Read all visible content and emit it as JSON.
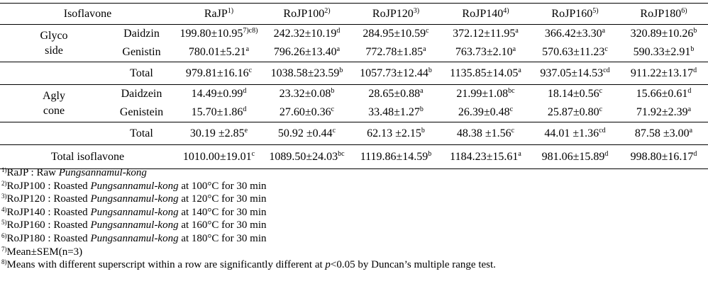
{
  "table": {
    "header": {
      "first": "Isoflavone",
      "columns": [
        {
          "label": "RaJP",
          "sup": "1)"
        },
        {
          "label": "RoJP100",
          "sup": "2)"
        },
        {
          "label": "RoJP120",
          "sup": "3)"
        },
        {
          "label": "RoJP140",
          "sup": "4)"
        },
        {
          "label": "RoJP160",
          "sup": "5)"
        },
        {
          "label": "RoJP180",
          "sup": "6)"
        }
      ]
    },
    "glycoside": {
      "group_line1": "Glyco",
      "group_line2": "side",
      "rows": [
        {
          "name": "Daidzin",
          "cells": [
            {
              "v": "199.80±10.95",
              "s": "7)c8)"
            },
            {
              "v": "242.32±10.19",
              "s": "d"
            },
            {
              "v": "284.95±10.59",
              "s": "c"
            },
            {
              "v": "372.12±11.95",
              "s": "a"
            },
            {
              "v": "366.42±3.30",
              "s": "a"
            },
            {
              "v": "320.89±10.26",
              "s": "b"
            }
          ]
        },
        {
          "name": "Genistin",
          "cells": [
            {
              "v": "780.01±5.21",
              "s": "a"
            },
            {
              "v": "796.26±13.40",
              "s": "a"
            },
            {
              "v": "772.78±1.85",
              "s": "a"
            },
            {
              "v": "763.73±2.10",
              "s": "a"
            },
            {
              "v": "570.63±11.23",
              "s": "c"
            },
            {
              "v": "590.33±2.91",
              "s": "b"
            }
          ]
        }
      ],
      "total": {
        "name": "Total",
        "cells": [
          {
            "v": "979.81±16.16",
            "s": "c"
          },
          {
            "v": "1038.58±23.59",
            "s": "b"
          },
          {
            "v": "1057.73±12.44",
            "s": "b"
          },
          {
            "v": "1135.85±14.05",
            "s": "a"
          },
          {
            "v": "937.05±14.53",
            "s": "cd"
          },
          {
            "v": "911.22±13.17",
            "s": "d"
          }
        ]
      }
    },
    "aglycone": {
      "group_line1": "Agly",
      "group_line2": "cone",
      "rows": [
        {
          "name": "Daidzein",
          "cells": [
            {
              "v": "14.49±0.99",
              "s": "d"
            },
            {
              "v": "23.32±0.08",
              "s": "b"
            },
            {
              "v": "28.65±0.88",
              "s": "a"
            },
            {
              "v": "21.99±1.08",
              "s": "bc"
            },
            {
              "v": "18.14±0.56",
              "s": "c"
            },
            {
              "v": "15.66±0.61",
              "s": "d"
            }
          ]
        },
        {
          "name": "Genistein",
          "cells": [
            {
              "v": "15.70±1.86",
              "s": "d"
            },
            {
              "v": "27.60±0.36",
              "s": "c"
            },
            {
              "v": "33.48±1.27",
              "s": "b"
            },
            {
              "v": "26.39±0.48",
              "s": "c"
            },
            {
              "v": "25.87±0.80",
              "s": "c"
            },
            {
              "v": "71.92±2.39",
              "s": "a"
            }
          ]
        }
      ],
      "total": {
        "name": "Total",
        "cells": [
          {
            "v": "30.19 ±2.85",
            "s": "e"
          },
          {
            "v": "50.92 ±0.44",
            "s": "c"
          },
          {
            "v": "62.13 ±2.15",
            "s": "b"
          },
          {
            "v": "48.38 ±1.56",
            "s": "c"
          },
          {
            "v": "44.01 ±1.36",
            "s": "cd"
          },
          {
            "v": "87.58 ±3.00",
            "s": "a"
          }
        ]
      }
    },
    "grand_total": {
      "name": "Total isoflavone",
      "cells": [
        {
          "v": "1010.00±19.01",
          "s": "c"
        },
        {
          "v": "1089.50±24.03",
          "s": "bc"
        },
        {
          "v": "1119.86±14.59",
          "s": "b"
        },
        {
          "v": "1184.23±15.61",
          "s": "a"
        },
        {
          "v": "981.06±15.89",
          "s": "d"
        },
        {
          "v": "998.80±16.17",
          "s": "d"
        }
      ]
    }
  },
  "notes": [
    {
      "sup": "1)",
      "pre": "RaJP : Raw ",
      "it": "Pungsannamul-kong",
      "post": ""
    },
    {
      "sup": "2)",
      "pre": "RoJP100 : Roasted ",
      "it": "Pungsannamul-kong",
      "post": " at 100°C for 30 min"
    },
    {
      "sup": "3)",
      "pre": "RoJP120 : Roasted ",
      "it": "Pungsannamul-kong",
      "post": " at 120°C for 30 min"
    },
    {
      "sup": "4)",
      "pre": "RoJP140 : Roasted ",
      "it": "Pungsannamul-kong",
      "post": " at 140°C for 30 min"
    },
    {
      "sup": "5)",
      "pre": "RoJP160 : Roasted ",
      "it": "Pungsannamul-kong",
      "post": " at 160°C for 30 min"
    },
    {
      "sup": "6)",
      "pre": "RoJP180 : Roasted ",
      "it": "Pungsannamul-kong",
      "post": " at 180°C for 30 min"
    },
    {
      "sup": "7)",
      "pre": "Mean±SEM(n=3)",
      "it": "",
      "post": ""
    },
    {
      "sup": "8)",
      "pre": "Means with different superscript within a row are significantly different at ",
      "it": "p",
      "post": "<0.05 by Duncan’s multiple range test."
    }
  ]
}
